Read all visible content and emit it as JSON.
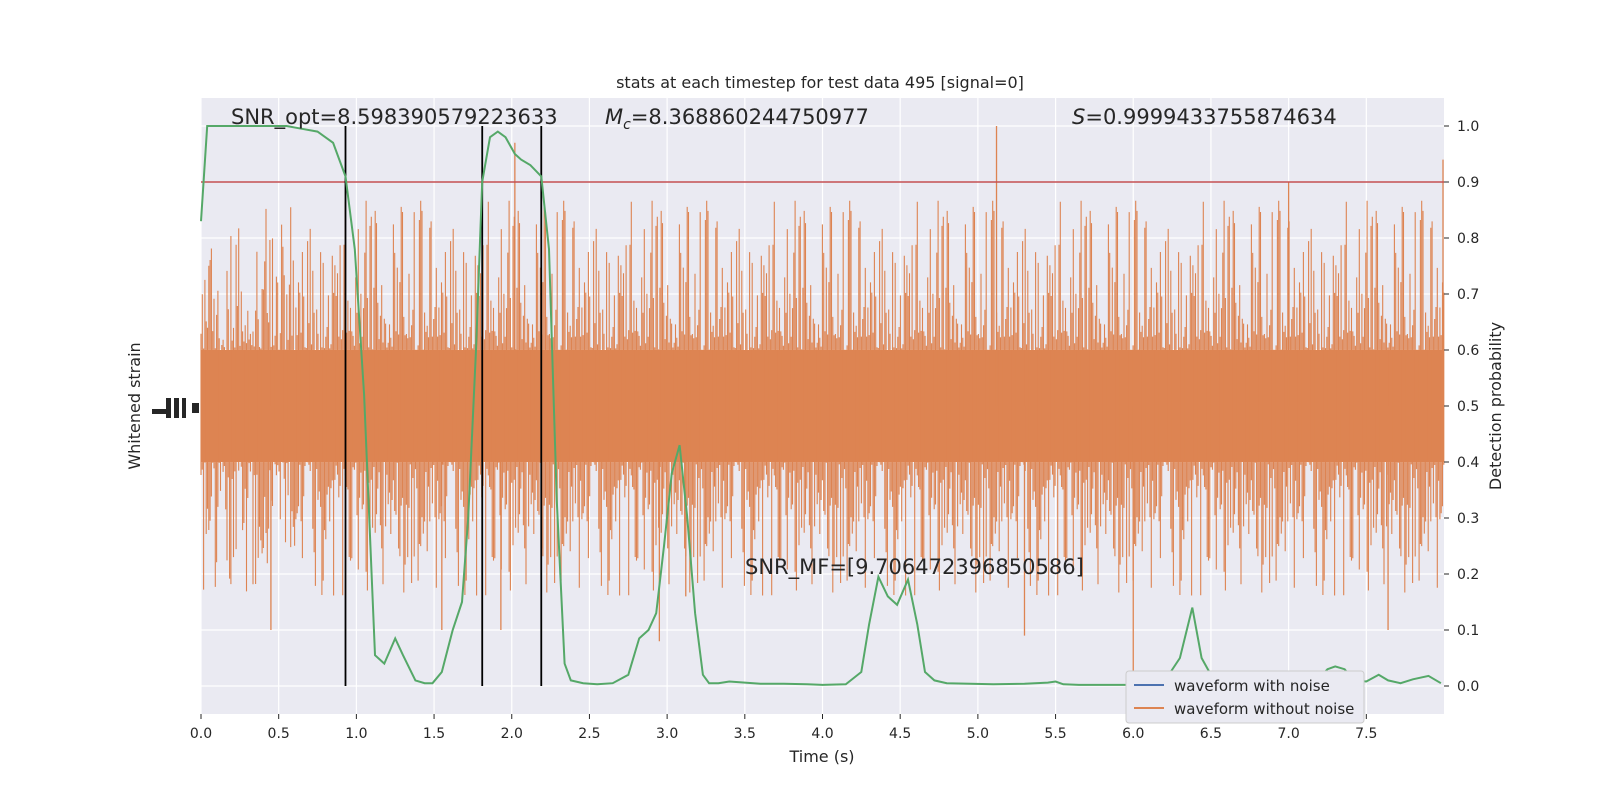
{
  "chart_data": {
    "type": "line",
    "title": "stats at each timestep for test data 495 [signal=0]",
    "xlabel": "Time (s)",
    "ylabel_left": "Whitened strain",
    "ylabel_right": "Detection probability",
    "xlim": [
      0,
      8
    ],
    "ylim_right": [
      -0.05,
      1.05
    ],
    "xticks": [
      0.0,
      0.5,
      1.0,
      1.5,
      2.0,
      2.5,
      3.0,
      3.5,
      4.0,
      4.5,
      5.0,
      5.5,
      6.0,
      6.5,
      7.0,
      7.5
    ],
    "xtick_labels": [
      "0.0",
      "0.5",
      "1.0",
      "1.5",
      "2.0",
      "2.5",
      "3.0",
      "3.5",
      "4.0",
      "4.5",
      "5.0",
      "5.5",
      "6.0",
      "6.5",
      "7.0",
      "7.5"
    ],
    "yticks_right": [
      0.0,
      0.1,
      0.2,
      0.3,
      0.4,
      0.5,
      0.6,
      0.7,
      0.8,
      0.9,
      1.0
    ],
    "ytick_labels_right": [
      "0.0",
      "0.1",
      "0.2",
      "0.3",
      "0.4",
      "0.5",
      "0.6",
      "0.7",
      "0.8",
      "0.9",
      "1.0"
    ],
    "grid": true,
    "legend_position": "bottom-right",
    "annotations": {
      "snr_opt": "SNR_opt=8.598390579223633",
      "mc_symbol": "M",
      "mc_sub": "c",
      "mc_value": "=8.368860244750977",
      "s_symbol": "S",
      "s_value": "=0.9999433755874634",
      "snr_mf": "SNR_MF=[9.706472396850586]"
    },
    "threshold": 0.9,
    "vertical_lines_x": [
      0.93,
      1.81,
      2.19
    ],
    "series": [
      {
        "name": "waveform with noise",
        "color": "#4c72b0"
      },
      {
        "name": "waveform without noise",
        "color": "#dd8452"
      },
      {
        "color": "#55a868",
        "x": [
          0.0,
          0.04,
          0.08,
          0.15,
          0.25,
          0.35,
          0.45,
          0.55,
          0.65,
          0.75,
          0.8,
          0.85,
          0.89,
          0.93,
          0.99,
          1.05,
          1.12,
          1.18,
          1.25,
          1.3,
          1.38,
          1.44,
          1.49,
          1.55,
          1.62,
          1.68,
          1.72,
          1.77,
          1.81,
          1.86,
          1.91,
          1.96,
          2.02,
          2.06,
          2.12,
          2.19,
          2.24,
          2.29,
          2.34,
          2.38,
          2.46,
          2.55,
          2.65,
          2.75,
          2.82,
          2.88,
          2.93,
          2.98,
          3.03,
          3.08,
          3.13,
          3.18,
          3.23,
          3.27,
          3.33,
          3.4,
          3.5,
          3.6,
          3.75,
          3.9,
          4.0,
          4.15,
          4.25,
          4.3,
          4.36,
          4.42,
          4.48,
          4.55,
          4.61,
          4.66,
          4.72,
          4.8,
          4.95,
          5.1,
          5.3,
          5.45,
          5.5,
          5.55,
          5.65,
          5.8,
          6.0,
          6.1,
          6.2,
          6.3,
          6.38,
          6.44,
          6.52,
          6.6,
          6.8,
          7.0,
          7.1,
          7.2,
          7.25,
          7.3,
          7.36,
          7.42,
          7.5,
          7.58,
          7.64,
          7.72,
          7.8,
          7.9,
          7.98
        ],
        "y": [
          0.83,
          1.0,
          1.0,
          1.0,
          1.0,
          1.0,
          1.0,
          1.0,
          0.995,
          0.99,
          0.98,
          0.97,
          0.94,
          0.91,
          0.78,
          0.52,
          0.055,
          0.04,
          0.085,
          0.055,
          0.01,
          0.005,
          0.005,
          0.025,
          0.1,
          0.15,
          0.3,
          0.6,
          0.9,
          0.98,
          0.99,
          0.98,
          0.95,
          0.94,
          0.93,
          0.91,
          0.78,
          0.33,
          0.04,
          0.01,
          0.005,
          0.003,
          0.005,
          0.02,
          0.085,
          0.1,
          0.13,
          0.25,
          0.38,
          0.43,
          0.3,
          0.13,
          0.02,
          0.005,
          0.005,
          0.008,
          0.006,
          0.004,
          0.004,
          0.003,
          0.002,
          0.003,
          0.025,
          0.11,
          0.195,
          0.16,
          0.145,
          0.19,
          0.11,
          0.025,
          0.01,
          0.005,
          0.004,
          0.003,
          0.004,
          0.006,
          0.008,
          0.003,
          0.002,
          0.002,
          0.002,
          0.002,
          0.008,
          0.05,
          0.14,
          0.05,
          0.01,
          0.004,
          0.004,
          0.004,
          0.008,
          0.015,
          0.03,
          0.035,
          0.03,
          0.01,
          0.008,
          0.02,
          0.01,
          0.005,
          0.012,
          0.018,
          0.005
        ]
      }
    ]
  }
}
